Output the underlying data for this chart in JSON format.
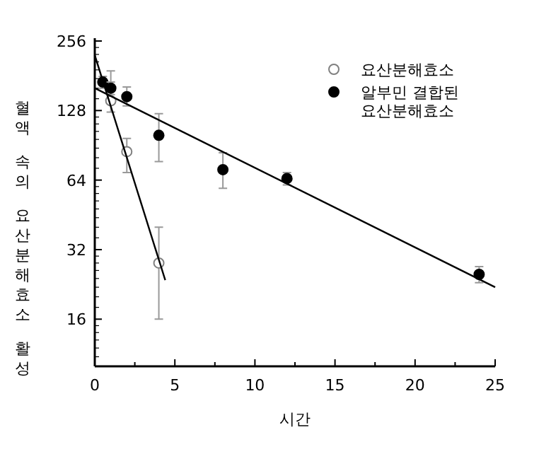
{
  "chart_data": {
    "type": "scatter",
    "xlabel": "시간",
    "ylabel": "혈액 속의 요산분해효소 활성",
    "log": "y",
    "xlim": [
      0,
      25
    ],
    "ylim": [
      10,
      256
    ],
    "xticks": [
      0,
      5,
      10,
      15,
      20,
      25
    ],
    "yticks": [
      16,
      32,
      64,
      128,
      256
    ],
    "grid": false,
    "legend": "top right",
    "marker": "circle",
    "series": [
      {
        "name": "요산분해효소",
        "color": "#808080",
        "x": [
          1,
          2,
          4
        ],
        "values": [
          141,
          85,
          28
        ],
        "errors": [
          [
            126,
            190
          ],
          [
            69,
            97
          ],
          [
            16,
            40
          ]
        ]
      },
      {
        "name": "알부민 결합된 요산분해효소",
        "color": "#000000",
        "x": [
          0.5,
          1,
          2,
          4,
          8,
          12,
          24
        ],
        "values": [
          170,
          160,
          147,
          100,
          71,
          65,
          25
        ],
        "errors": [
          [
            160,
            180
          ],
          [
            150,
            170
          ],
          [
            134,
            162
          ],
          [
            77,
            124
          ],
          [
            59,
            84
          ],
          [
            61,
            69
          ],
          [
            23,
            27
          ]
        ]
      },
      {
        "type": "line",
        "marker": "none",
        "color": "#000000",
        "x": [
          0,
          4.4
        ],
        "values": [
          222,
          23.6
        ]
      },
      {
        "type": "line",
        "marker": "none",
        "color": "#000000",
        "x": [
          0,
          25
        ],
        "values": [
          160,
          22
        ]
      }
    ]
  }
}
